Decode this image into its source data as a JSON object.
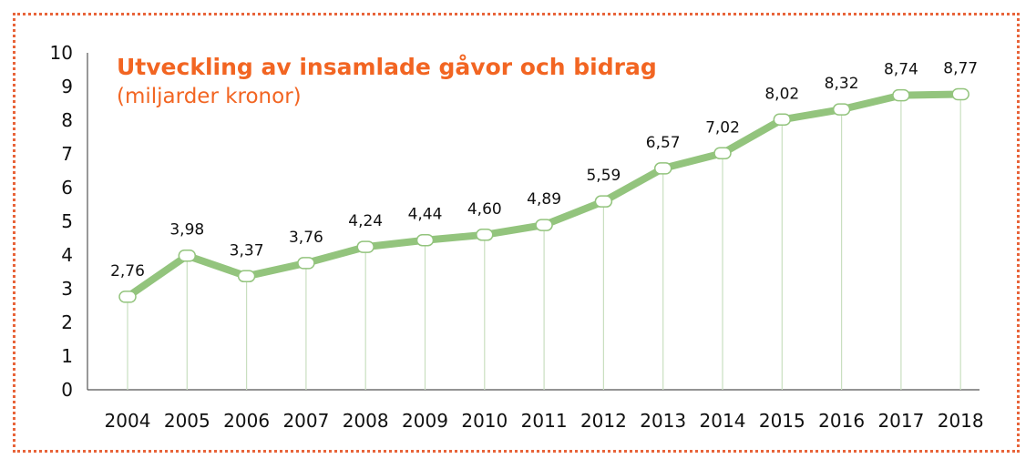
{
  "chart_data": {
    "type": "line",
    "title": "Utveckling av insamlade gåvor och bidrag",
    "subtitle": "(miljarder kronor)",
    "categories": [
      "2004",
      "2005",
      "2006",
      "2007",
      "2008",
      "2009",
      "2010",
      "2011",
      "2012",
      "2013",
      "2014",
      "2015",
      "2016",
      "2017",
      "2018"
    ],
    "values": [
      2.76,
      3.98,
      3.37,
      3.76,
      4.24,
      4.44,
      4.6,
      4.89,
      5.59,
      6.57,
      7.02,
      8.02,
      8.32,
      8.74,
      8.77
    ],
    "value_labels": [
      "2,76",
      "3,98",
      "3,37",
      "3,76",
      "4,24",
      "4,44",
      "4,60",
      "4,89",
      "5,59",
      "6,57",
      "7,02",
      "8,02",
      "8,32",
      "8,74",
      "8,77"
    ],
    "yticks": [
      "0",
      "1",
      "2",
      "3",
      "4",
      "5",
      "6",
      "7",
      "8",
      "9",
      "10"
    ],
    "ylim": [
      0,
      10
    ],
    "xlabel": "",
    "ylabel": "",
    "grid": false,
    "colors": {
      "line": "#93c47d",
      "marker_fill": "#ffffff",
      "drop_line": "#c9dfc0",
      "title": "#f26522",
      "frame": "#e8643a"
    }
  }
}
